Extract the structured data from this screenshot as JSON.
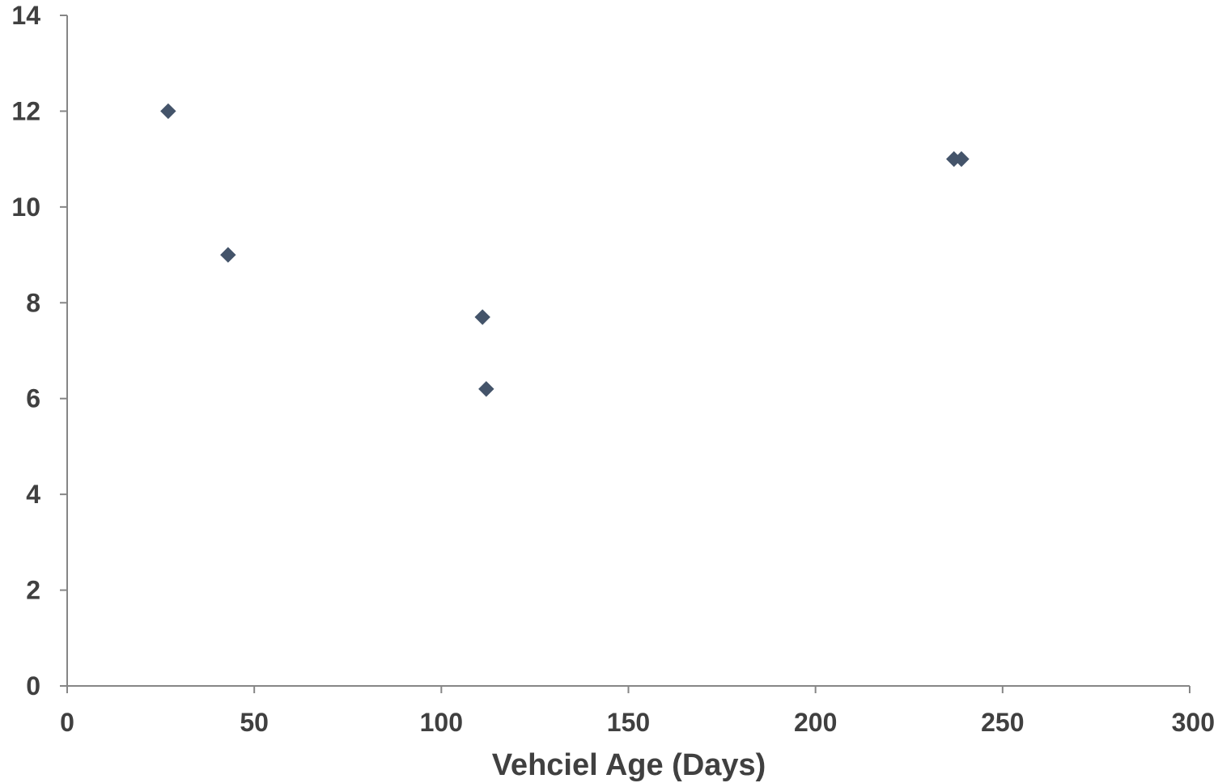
{
  "chart_data": {
    "type": "scatter",
    "title": "",
    "xlabel": "Vehciel Age (Days)",
    "ylabel": "",
    "xlim": [
      0,
      300
    ],
    "ylim": [
      0,
      14
    ],
    "x_ticks": [
      "0",
      "50",
      "100",
      "150",
      "200",
      "250",
      "300"
    ],
    "y_ticks": [
      "0",
      "2",
      "4",
      "6",
      "8",
      "10",
      "12",
      "14"
    ],
    "grid": false,
    "legend": "none",
    "marker": "diamond",
    "series": [
      {
        "color": "#44546a",
        "points": [
          {
            "x": 27,
            "y": 12
          },
          {
            "x": 43,
            "y": 9
          },
          {
            "x": 111,
            "y": 7.7
          },
          {
            "x": 112,
            "y": 6.2
          },
          {
            "x": 237,
            "y": 11
          },
          {
            "x": 239,
            "y": 11
          }
        ]
      }
    ]
  }
}
